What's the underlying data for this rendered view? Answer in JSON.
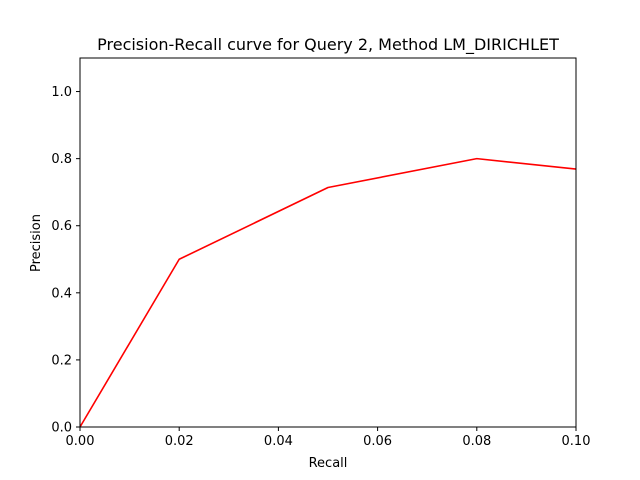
{
  "chart_data": {
    "type": "line",
    "title": "Precision-Recall curve for Query 2, Method LM_DIRICHLET",
    "xlabel": "Recall",
    "ylabel": "Precision",
    "xlim": [
      0.0,
      0.1
    ],
    "ylim": [
      0.0,
      1.1
    ],
    "xticks": [
      "0.00",
      "0.02",
      "0.04",
      "0.06",
      "0.08",
      "0.10"
    ],
    "yticks": [
      "0.0",
      "0.2",
      "0.4",
      "0.6",
      "0.8",
      "1.0"
    ],
    "grid": false,
    "series": [
      {
        "color": "#ff0000",
        "x": [
          0.0,
          0.02,
          0.05,
          0.08,
          0.1
        ],
        "y": [
          0.0,
          0.5,
          0.714,
          0.8,
          0.769
        ]
      }
    ]
  }
}
